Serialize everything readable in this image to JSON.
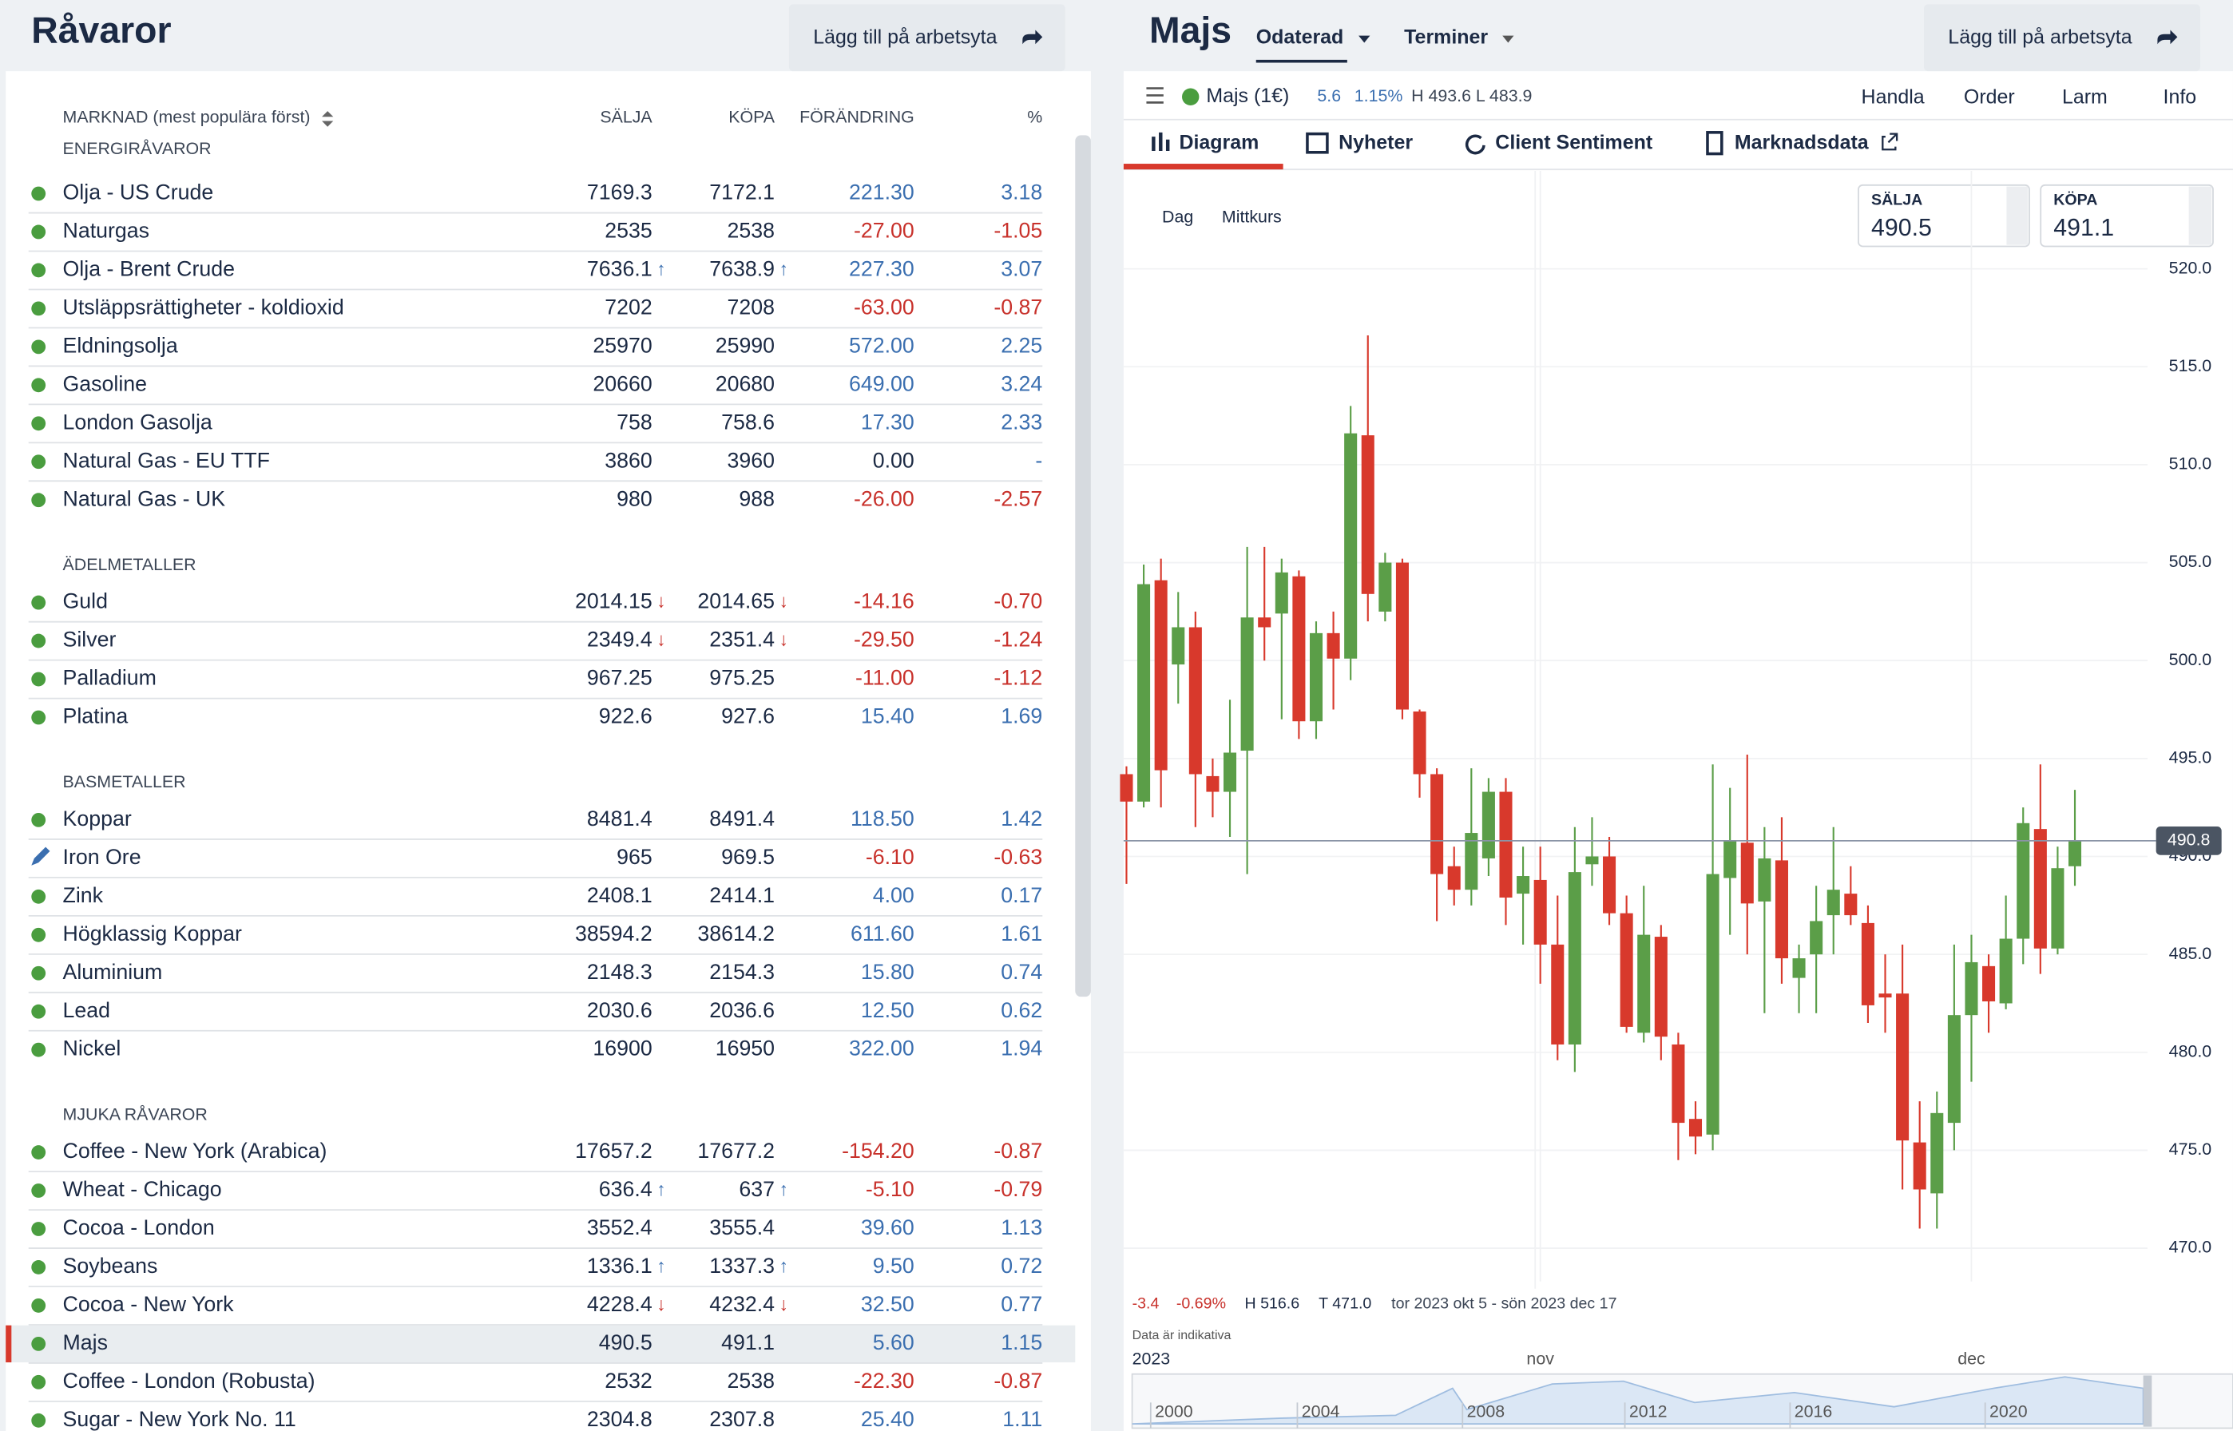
{
  "left": {
    "title": "Råvaror",
    "button": "Lägg till på arbetsyta",
    "columns": [
      "MARKNAD (mest populära först)",
      "SÄLJA",
      "KÖPA",
      "FÖRÄNDRING",
      "%"
    ],
    "sections": [
      {
        "name": "ENERGIRÅVAROR",
        "rows": [
          {
            "name": "Olja - US Crude",
            "sell": "7169.3",
            "buy": "7172.1",
            "change": "221.30",
            "pct": "3.18"
          },
          {
            "name": "Naturgas",
            "sell": "2535",
            "buy": "2538",
            "change": "-27.00",
            "pct": "-1.05"
          },
          {
            "name": "Olja - Brent Crude",
            "sell": "7636.1",
            "sell_arrow": "↑",
            "buy": "7638.9",
            "buy_arrow": "↑",
            "change": "227.30",
            "pct": "3.07"
          },
          {
            "name": "Utsläppsrättigheter - koldioxid",
            "sell": "7202",
            "buy": "7208",
            "change": "-63.00",
            "pct": "-0.87"
          },
          {
            "name": "Eldningsolja",
            "sell": "25970",
            "buy": "25990",
            "change": "572.00",
            "pct": "2.25"
          },
          {
            "name": "Gasoline",
            "sell": "20660",
            "buy": "20680",
            "change": "649.00",
            "pct": "3.24"
          },
          {
            "name": "London Gasolja",
            "sell": "758",
            "buy": "758.6",
            "change": "17.30",
            "pct": "2.33"
          },
          {
            "name": "Natural Gas - EU TTF",
            "sell": "3860",
            "buy": "3960",
            "change": "0.00",
            "pct": "-"
          },
          {
            "name": "Natural Gas - UK",
            "sell": "980",
            "buy": "988",
            "change": "-26.00",
            "pct": "-2.57"
          }
        ]
      },
      {
        "name": "ÄDELMETALLER",
        "rows": [
          {
            "name": "Guld",
            "sell": "2014.15",
            "sell_arrow": "↓",
            "buy": "2014.65",
            "buy_arrow": "↓",
            "change": "-14.16",
            "pct": "-0.70"
          },
          {
            "name": "Silver",
            "sell": "2349.4",
            "sell_arrow": "↓",
            "buy": "2351.4",
            "buy_arrow": "↓",
            "change": "-29.50",
            "pct": "-1.24"
          },
          {
            "name": "Palladium",
            "sell": "967.25",
            "buy": "975.25",
            "change": "-11.00",
            "pct": "-1.12"
          },
          {
            "name": "Platina",
            "sell": "922.6",
            "buy": "927.6",
            "change": "15.40",
            "pct": "1.69"
          }
        ]
      },
      {
        "name": "BASMETALLER",
        "rows": [
          {
            "name": "Koppar",
            "sell": "8481.4",
            "buy": "8491.4",
            "change": "118.50",
            "pct": "1.42"
          },
          {
            "name": "Iron Ore",
            "status": "edit",
            "sell": "965",
            "buy": "969.5",
            "change": "-6.10",
            "pct": "-0.63"
          },
          {
            "name": "Zink",
            "sell": "2408.1",
            "buy": "2414.1",
            "change": "4.00",
            "pct": "0.17"
          },
          {
            "name": "Högklassig Koppar",
            "sell": "38594.2",
            "buy": "38614.2",
            "change": "611.60",
            "pct": "1.61"
          },
          {
            "name": "Aluminium",
            "sell": "2148.3",
            "buy": "2154.3",
            "change": "15.80",
            "pct": "0.74"
          },
          {
            "name": "Lead",
            "sell": "2030.6",
            "buy": "2036.6",
            "change": "12.50",
            "pct": "0.62"
          },
          {
            "name": "Nickel",
            "sell": "16900",
            "buy": "16950",
            "change": "322.00",
            "pct": "1.94"
          }
        ]
      },
      {
        "name": "MJUKA RÅVAROR",
        "rows": [
          {
            "name": "Coffee - New York (Arabica)",
            "sell": "17657.2",
            "buy": "17677.2",
            "change": "-154.20",
            "pct": "-0.87"
          },
          {
            "name": "Wheat - Chicago",
            "sell": "636.4",
            "sell_arrow": "↑",
            "buy": "637",
            "buy_arrow": "↑",
            "change": "-5.10",
            "pct": "-0.79"
          },
          {
            "name": "Cocoa - London",
            "sell": "3552.4",
            "buy": "3555.4",
            "change": "39.60",
            "pct": "1.13"
          },
          {
            "name": "Soybeans",
            "sell": "1336.1",
            "sell_arrow": "↑",
            "buy": "1337.3",
            "buy_arrow": "↑",
            "change": "9.50",
            "pct": "0.72"
          },
          {
            "name": "Cocoa - New York",
            "sell": "4228.4",
            "sell_arrow": "↓",
            "buy": "4232.4",
            "buy_arrow": "↓",
            "change": "32.50",
            "pct": "0.77"
          },
          {
            "name": "Majs",
            "selected": true,
            "sell": "490.5",
            "buy": "491.1",
            "change": "5.60",
            "pct": "1.15"
          },
          {
            "name": "Coffee - London (Robusta)",
            "sell": "2532",
            "buy": "2538",
            "change": "-22.30",
            "pct": "-0.87"
          },
          {
            "name": "Sugar - New York No. 11",
            "sell": "2304.8",
            "buy": "2307.8",
            "change": "25.40",
            "pct": "1.11"
          }
        ]
      }
    ]
  },
  "right": {
    "title": "Majs",
    "menu": [
      "Odaterad",
      "Terminer"
    ],
    "button": "Lägg till på arbetsyta",
    "instrument": "Majs (1€)",
    "change": "5.6",
    "pct": "1.15%",
    "hl": "H 493.6 L 483.9",
    "actions": [
      "Handla",
      "Order",
      "Larm",
      "Info"
    ],
    "tabs": [
      "Diagram",
      "Nyheter",
      "Client Sentiment",
      "Marknadsdata"
    ],
    "sell_label": "SÄLJA",
    "sell": "490.5",
    "buy_label": "KÖPA",
    "buy": "491.1",
    "periods": [
      "Dag",
      "Mittkurs"
    ],
    "footer": {
      "change": "-3.4",
      "pct": "-0.69%",
      "high": "H 516.6",
      "low": "T 471.0",
      "range": "tor 2023 okt 5 - sön 2023 dec 17",
      "note": "Data är indikativa",
      "year": "2023"
    },
    "navigator": [
      "2000",
      "2004",
      "2008",
      "2012",
      "2016",
      "2020"
    ]
  },
  "chart": {
    "type": "candlestick",
    "up_color": "#5b9e48",
    "down_color": "#d8392c",
    "grid": true,
    "x": [
      null,
      null,
      null,
      null,
      null,
      null,
      null,
      null,
      null,
      null,
      null,
      null,
      null,
      null,
      null,
      null,
      null,
      null,
      null,
      null,
      null,
      null,
      null,
      null,
      "nov",
      null,
      null,
      null,
      null,
      null,
      null,
      null,
      null,
      null,
      null,
      null,
      null,
      null,
      null,
      null,
      null,
      null,
      null,
      null,
      null,
      null,
      null,
      null,
      null,
      "dec",
      null,
      null,
      null,
      null,
      null,
      null
    ],
    "open": [
      494.2,
      492.8,
      504.1,
      499.8,
      501.7,
      494.1,
      493.3,
      495.4,
      502.2,
      502.4,
      504.3,
      496.9,
      501.4,
      500.1,
      511.5,
      502.5,
      505.0,
      497.4,
      494.2,
      489.5,
      488.3,
      489.9,
      493.3,
      488.1,
      488.8,
      485.5,
      480.4,
      489.6,
      490.0,
      487.1,
      481.0,
      485.9,
      480.4,
      476.6,
      475.8,
      488.9,
      490.7,
      487.7,
      489.8,
      483.8,
      485.0,
      487.0,
      488.1,
      486.6,
      483.0,
      483.0,
      475.4,
      472.8,
      476.4,
      481.9,
      484.4,
      482.5,
      485.8,
      491.4,
      485.3,
      489.5
    ],
    "high": [
      494.6,
      504.9,
      505.2,
      503.5,
      502.5,
      495.0,
      498.0,
      505.8,
      505.8,
      505.2,
      504.6,
      502.0,
      502.5,
      513.0,
      516.6,
      505.5,
      505.2,
      497.5,
      494.5,
      490.5,
      494.5,
      494.0,
      494.0,
      490.5,
      490.5,
      488.0,
      491.5,
      492.0,
      491.0,
      488.0,
      488.5,
      486.5,
      481.0,
      477.5,
      494.7,
      493.5,
      495.2,
      491.5,
      492.0,
      485.5,
      488.5,
      491.5,
      489.5,
      487.5,
      485.0,
      485.5,
      477.5,
      478.0,
      485.5,
      486.0,
      485.0,
      488.0,
      492.5,
      494.7,
      490.5,
      493.4
    ],
    "low": [
      488.6,
      492.5,
      492.5,
      497.8,
      491.5,
      492.0,
      491.0,
      489.1,
      500.0,
      497.0,
      496.0,
      496.0,
      497.5,
      499.0,
      502.0,
      502.0,
      497.0,
      493.0,
      486.7,
      487.5,
      487.5,
      489.0,
      486.5,
      485.5,
      483.5,
      479.6,
      479.0,
      488.5,
      486.5,
      481.0,
      480.5,
      479.6,
      474.5,
      474.8,
      475.0,
      486.0,
      485.0,
      482.0,
      483.5,
      482.0,
      482.0,
      485.0,
      486.5,
      481.5,
      481.0,
      473.0,
      471.0,
      471.0,
      475.0,
      478.5,
      481.0,
      482.2,
      484.5,
      484.0,
      485.0,
      488.5
    ],
    "close": [
      492.8,
      503.9,
      494.4,
      501.7,
      494.2,
      493.3,
      495.3,
      502.2,
      501.7,
      504.5,
      496.9,
      501.4,
      500.1,
      511.6,
      503.4,
      505.0,
      497.5,
      494.2,
      489.1,
      488.3,
      491.2,
      493.3,
      487.9,
      489.0,
      485.5,
      480.4,
      489.2,
      490.0,
      487.1,
      481.3,
      486.0,
      480.8,
      476.4,
      475.7,
      489.1,
      490.8,
      487.6,
      489.9,
      484.8,
      484.8,
      486.7,
      488.3,
      487.0,
      482.4,
      482.8,
      475.5,
      473.0,
      476.9,
      481.9,
      484.6,
      482.6,
      485.8,
      491.7,
      485.3,
      489.4,
      490.8
    ],
    "last": 490.8,
    "ylim": [
      468.3,
      525
    ],
    "yticks": [
      {
        "value": 470,
        "label": "470.0"
      },
      {
        "value": 475,
        "label": "475.0"
      },
      {
        "value": 480,
        "label": "480.0"
      },
      {
        "value": 485,
        "label": "485.0"
      },
      {
        "value": 490,
        "label": "490.0"
      },
      {
        "value": 495,
        "label": "495.0"
      },
      {
        "value": 500,
        "label": "500.0"
      },
      {
        "value": 505,
        "label": "505.0"
      },
      {
        "value": 510,
        "label": "510.0"
      },
      {
        "value": 515,
        "label": "515.0"
      },
      {
        "value": 520,
        "label": "520.0"
      }
    ]
  }
}
